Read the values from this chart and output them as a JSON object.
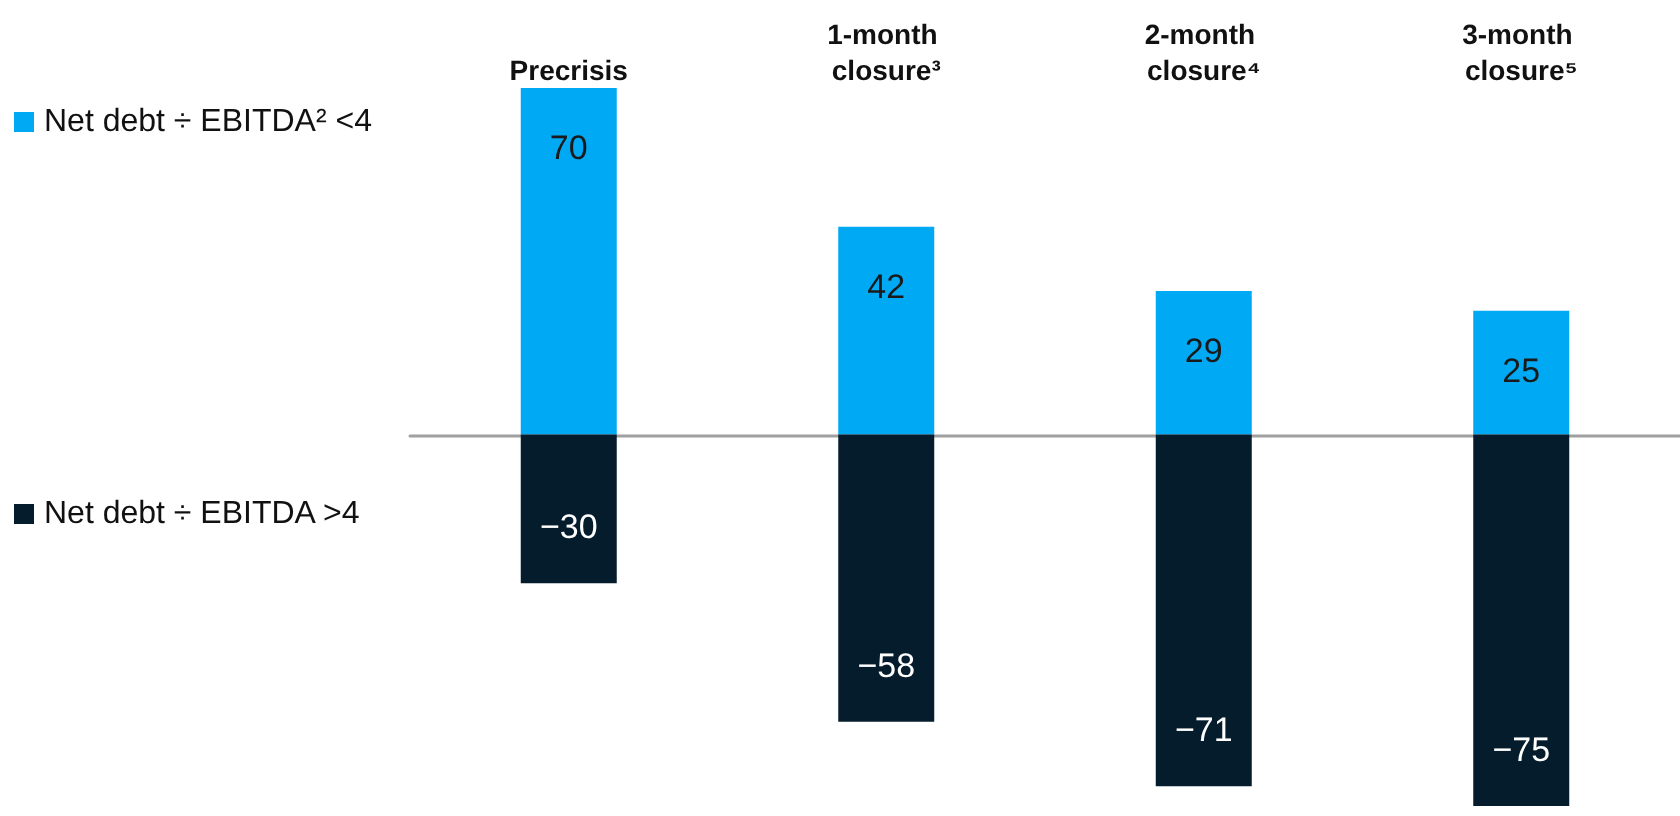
{
  "chart_data": {
    "type": "bar",
    "stacked": true,
    "categories": [
      "Precrisis",
      "1-month closure³",
      "2-month closure⁴",
      "3-month closure⁵"
    ],
    "series": [
      {
        "name": "Net debt ÷ EBITDA² <4",
        "color": "#00a9f4",
        "values": [
          70,
          42,
          29,
          25
        ]
      },
      {
        "name": "Net debt ÷ EBITDA >4",
        "color": "#051c2c",
        "values": [
          -30,
          -58,
          -71,
          -75
        ],
        "value_labels": [
          "−30",
          "−58",
          "−71",
          "−75"
        ]
      }
    ],
    "data_labels": true,
    "legend": "left",
    "tick_labels": "x"
  }
}
